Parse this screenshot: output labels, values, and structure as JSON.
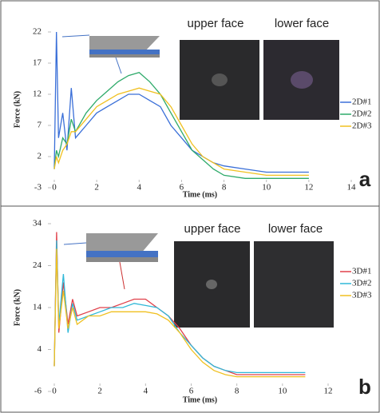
{
  "chart_data": [
    {
      "type": "line",
      "panel": "a",
      "upper_label": "upper face",
      "lower_label": "lower face",
      "x_label": "Time (ms)",
      "y_label": "Force (kN)",
      "x": [
        0,
        0.1,
        0.2,
        0.4,
        0.6,
        0.8,
        1,
        1.5,
        2,
        2.5,
        3,
        3.5,
        4,
        4.5,
        5,
        5.5,
        6,
        6.5,
        7,
        7.5,
        8,
        9,
        10,
        11,
        12
      ],
      "series": [
        {
          "name": "2D#1",
          "color": "#3a6fd8",
          "values": [
            0,
            22,
            5,
            9,
            3,
            13,
            5,
            7,
            9,
            10,
            11,
            12,
            12,
            11,
            10,
            7,
            5,
            3,
            2,
            1,
            0.5,
            0,
            -0.5,
            -0.5,
            -0.5
          ]
        },
        {
          "name": "2D#2",
          "color": "#2eaa6a",
          "values": [
            0,
            3,
            2,
            5,
            4,
            8,
            6,
            9,
            11,
            12.5,
            14,
            15,
            15.5,
            14,
            12,
            9,
            6,
            3,
            1.5,
            0,
            -1,
            -1.5,
            -1.5,
            -1.5,
            -1.5
          ]
        },
        {
          "name": "2D#3",
          "color": "#f0c020",
          "values": [
            0,
            2,
            1,
            3,
            4,
            6,
            6,
            8,
            10,
            11,
            12,
            12.5,
            13,
            12.5,
            12,
            10,
            7,
            4,
            2,
            1,
            0,
            -0.5,
            -1,
            -1,
            -1
          ]
        }
      ],
      "xlim": [
        0,
        14
      ],
      "xticks": [
        0,
        2,
        4,
        6,
        8,
        10,
        12,
        14
      ],
      "ylim": [
        -3,
        22
      ],
      "yticks": [
        -3,
        2,
        7,
        12,
        17,
        22
      ]
    },
    {
      "type": "line",
      "panel": "b",
      "upper_label": "upper face",
      "lower_label": "lower face",
      "x_label": "Time (ms)",
      "y_label": "Force (kN)",
      "x": [
        0,
        0.1,
        0.2,
        0.4,
        0.6,
        0.8,
        1,
        1.5,
        2,
        2.5,
        3,
        3.5,
        4,
        4.5,
        5,
        5.5,
        6,
        6.5,
        7,
        7.5,
        8,
        9,
        10,
        11
      ],
      "series": [
        {
          "name": "3D#1",
          "color": "#e0404a",
          "values": [
            0,
            32,
            8,
            20,
            10,
            16,
            12,
            13,
            14,
            14,
            15,
            16,
            16,
            14,
            12,
            9,
            5,
            2,
            0,
            -1,
            -2,
            -2,
            -2,
            -2
          ]
        },
        {
          "name": "3D#2",
          "color": "#30b8d8",
          "values": [
            0,
            30,
            10,
            22,
            8,
            15,
            11,
            12,
            13,
            14,
            14,
            15,
            14.5,
            14,
            12,
            8,
            5,
            2,
            0,
            -1,
            -1.5,
            -1.5,
            -1.5,
            -1.5
          ]
        },
        {
          "name": "3D#3",
          "color": "#f0c020",
          "values": [
            0,
            28,
            9,
            18,
            9,
            14,
            10,
            12,
            12,
            13,
            13,
            13,
            13,
            12.5,
            11,
            8,
            4,
            1,
            -1,
            -2,
            -2.5,
            -2.5,
            -2.5,
            -2.5
          ]
        }
      ],
      "xlim": [
        0,
        12
      ],
      "xticks": [
        0,
        2,
        4,
        6,
        8,
        10,
        12
      ],
      "ylim": [
        -6,
        34
      ],
      "yticks": [
        -6,
        4,
        14,
        24,
        34
      ]
    }
  ]
}
